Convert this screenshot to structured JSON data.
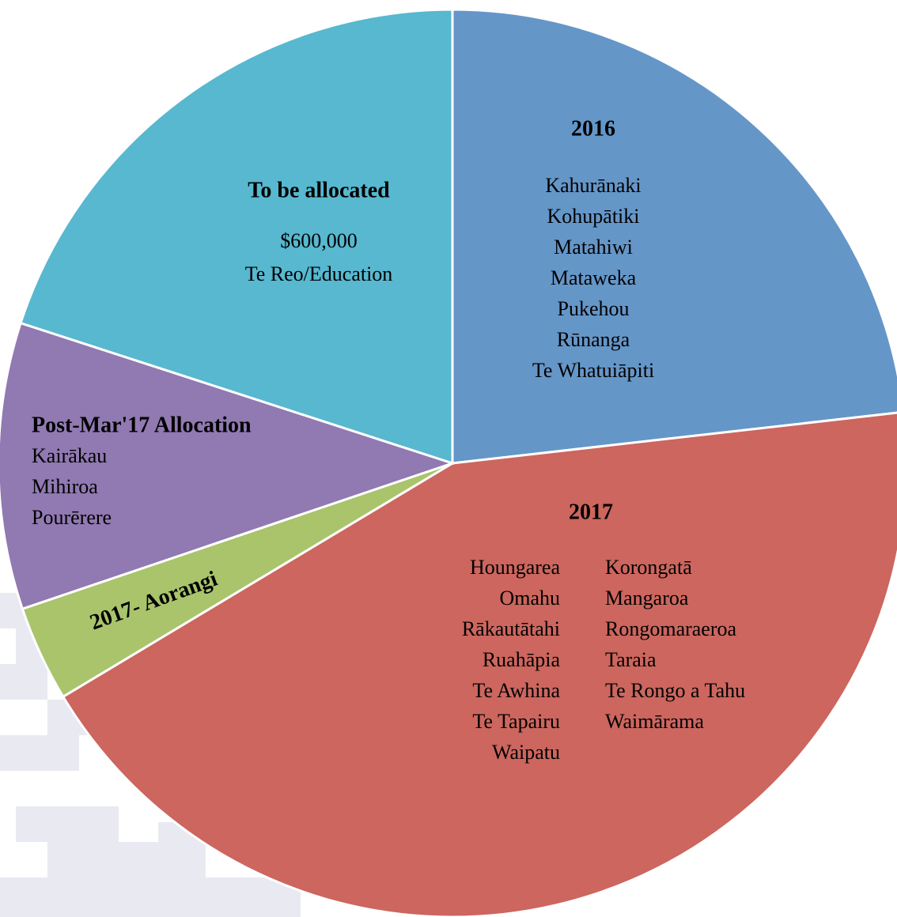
{
  "chart_data": {
    "type": "pie",
    "categories": [
      "2016",
      "2017",
      "2017- Aorangi",
      "Post-Mar'17 Allocation",
      "To be allocated"
    ],
    "values": [
      23.2,
      43.2,
      3.4,
      10.2,
      20.0
    ],
    "colors": [
      "#6596c8",
      "#cc665e",
      "#a9c46b",
      "#9179b2",
      "#57b8cf"
    ],
    "details": [
      [
        [
          "Kahurānaki",
          "Kohupātiki",
          "Matahiwi",
          "Mataweka",
          "Pukehou",
          "Rūnanga",
          "Te Whatuiāpiti"
        ]
      ],
      [
        [
          "Houngarea",
          "Omahu",
          "Rākautātahi",
          "Ruahāpia",
          "Te Awhina",
          "Te Tapairu",
          "Waipatu"
        ],
        [
          "Korongatā",
          "Mangaroa",
          "Rongomaraeroa",
          "Taraia",
          "Te Rongo a Tahu",
          "Waimārama"
        ]
      ],
      [],
      [
        [
          "Kairākau",
          "Mihiroa",
          "Pourērere"
        ]
      ],
      [
        [
          "$600,000",
          "Te Reo/Education"
        ]
      ]
    ]
  }
}
